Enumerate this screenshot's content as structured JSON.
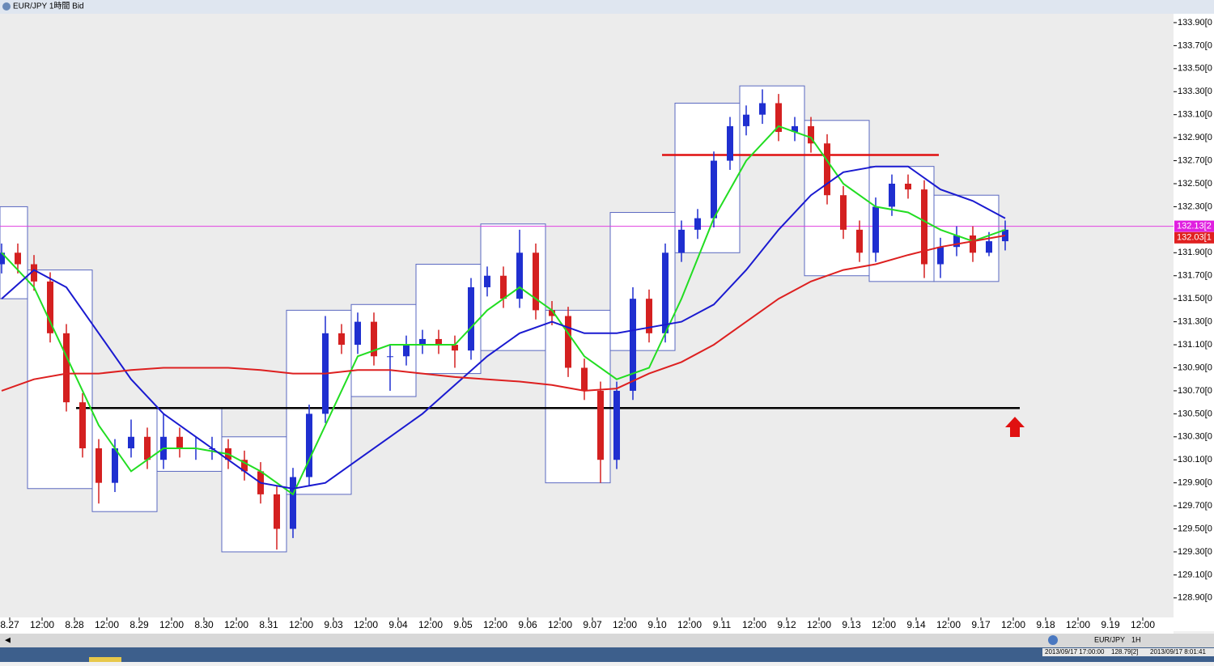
{
  "window": {
    "title": "EUR/JPY 1時間 Bid"
  },
  "chart_data": {
    "type": "candlestick",
    "x": [
      -3,
      3,
      9,
      15,
      21,
      27,
      33,
      39,
      45,
      51,
      57,
      63,
      69,
      75,
      81,
      87,
      93,
      99,
      105,
      111,
      117,
      123,
      129,
      135,
      141,
      147,
      153,
      159,
      165,
      171,
      177,
      183,
      189,
      195,
      201,
      207,
      213,
      219,
      225,
      231,
      237,
      243,
      249,
      255,
      261,
      267,
      273,
      279,
      285,
      291,
      297,
      303,
      309,
      315,
      321,
      327,
      333,
      339,
      345,
      351,
      357,
      363,
      369
    ],
    "open": [
      131.8,
      131.9,
      131.8,
      131.65,
      131.2,
      130.6,
      130.2,
      129.9,
      130.2,
      130.3,
      130.1,
      130.3,
      130.2,
      130.2,
      130.2,
      130.1,
      130.0,
      129.8,
      129.5,
      129.95,
      130.5,
      131.2,
      131.1,
      131.3,
      131.0,
      131.0,
      131.1,
      131.15,
      131.1,
      131.05,
      131.6,
      131.7,
      131.5,
      131.9,
      131.4,
      131.35,
      130.9,
      130.7,
      130.1,
      130.7,
      131.5,
      131.2,
      131.9,
      132.1,
      132.2,
      132.7,
      133.0,
      133.1,
      133.2,
      132.95,
      133.0,
      132.85,
      132.4,
      132.1,
      131.9,
      132.3,
      132.5,
      132.45,
      131.8,
      131.95,
      132.05,
      131.9,
      132.0
    ],
    "high": [
      131.98,
      131.98,
      131.88,
      131.73,
      131.28,
      130.68,
      130.28,
      130.28,
      130.45,
      130.38,
      130.5,
      130.38,
      130.3,
      130.3,
      130.28,
      130.18,
      130.08,
      129.88,
      130.03,
      130.58,
      131.35,
      131.28,
      131.38,
      131.38,
      131.1,
      131.18,
      131.23,
      131.23,
      131.18,
      131.68,
      131.78,
      131.78,
      132.1,
      131.98,
      131.48,
      131.43,
      130.98,
      130.78,
      130.78,
      131.6,
      131.58,
      131.98,
      132.18,
      132.28,
      132.78,
      133.08,
      133.18,
      133.32,
      133.28,
      133.08,
      133.08,
      132.93,
      132.48,
      132.18,
      132.38,
      132.58,
      132.58,
      132.53,
      132.03,
      132.13,
      132.13,
      132.08,
      132.18
    ],
    "low": [
      131.72,
      131.72,
      131.57,
      131.12,
      130.52,
      130.12,
      129.72,
      129.82,
      130.12,
      130.02,
      130.02,
      130.12,
      130.1,
      130.1,
      130.02,
      129.92,
      129.72,
      129.32,
      129.42,
      129.87,
      130.42,
      131.02,
      131.02,
      130.92,
      130.7,
      130.92,
      131.02,
      131.02,
      130.9,
      130.97,
      131.52,
      131.42,
      131.42,
      131.32,
      131.27,
      130.82,
      130.62,
      129.9,
      130.02,
      130.62,
      131.12,
      131.12,
      131.82,
      132.02,
      132.12,
      132.62,
      132.92,
      133.02,
      132.87,
      132.87,
      132.77,
      132.32,
      132.02,
      131.82,
      131.82,
      132.22,
      132.37,
      131.68,
      131.68,
      131.87,
      131.82,
      131.87,
      131.92
    ],
    "close": [
      131.9,
      131.8,
      131.65,
      131.2,
      130.6,
      130.2,
      129.9,
      130.2,
      130.3,
      130.1,
      130.3,
      130.2,
      130.2,
      130.2,
      130.1,
      130.0,
      129.8,
      129.5,
      129.95,
      130.5,
      131.2,
      131.1,
      131.3,
      131.0,
      131.0,
      131.1,
      131.15,
      131.1,
      131.05,
      131.6,
      131.7,
      131.5,
      131.9,
      131.4,
      131.35,
      130.9,
      130.7,
      130.1,
      130.7,
      131.5,
      131.2,
      131.9,
      132.1,
      132.2,
      132.7,
      133.0,
      133.1,
      133.2,
      132.95,
      133.0,
      132.85,
      132.4,
      132.1,
      131.9,
      132.3,
      132.5,
      132.45,
      131.8,
      131.95,
      132.05,
      131.9,
      132.0,
      132.1
    ],
    "up_color": "#1f2fd0",
    "down_color": "#d42020",
    "xlim": [
      -3.6,
      431.4
    ],
    "xticks": [
      {
        "value": 0,
        "label": "8.27"
      },
      {
        "value": 12,
        "label": "12:00"
      },
      {
        "value": 24,
        "label": "8.28"
      },
      {
        "value": 36,
        "label": "12:00"
      },
      {
        "value": 48,
        "label": "8.29"
      },
      {
        "value": 60,
        "label": "12:00"
      },
      {
        "value": 72,
        "label": "8.30"
      },
      {
        "value": 84,
        "label": "12:00"
      },
      {
        "value": 96,
        "label": "8.31"
      },
      {
        "value": 108,
        "label": "12:00"
      },
      {
        "value": 120,
        "label": "9.03"
      },
      {
        "value": 132,
        "label": "12:00"
      },
      {
        "value": 144,
        "label": "9.04"
      },
      {
        "value": 156,
        "label": "12:00"
      },
      {
        "value": 168,
        "label": "9.05"
      },
      {
        "value": 180,
        "label": "12:00"
      },
      {
        "value": 192,
        "label": "9.06"
      },
      {
        "value": 204,
        "label": "12:00"
      },
      {
        "value": 216,
        "label": "9.07"
      },
      {
        "value": 228,
        "label": "12:00"
      },
      {
        "value": 240,
        "label": "9.10"
      },
      {
        "value": 252,
        "label": "12:00"
      },
      {
        "value": 264,
        "label": "9.11"
      },
      {
        "value": 276,
        "label": "12:00"
      },
      {
        "value": 288,
        "label": "9.12"
      },
      {
        "value": 300,
        "label": "12:00"
      },
      {
        "value": 312,
        "label": "9.13"
      },
      {
        "value": 324,
        "label": "12:00"
      },
      {
        "value": 336,
        "label": "9.14"
      },
      {
        "value": 348,
        "label": "12:00"
      },
      {
        "value": 360,
        "label": "9.17"
      },
      {
        "value": 372,
        "label": "12:00"
      },
      {
        "value": 384,
        "label": "9.18"
      },
      {
        "value": 396,
        "label": "12:00"
      },
      {
        "value": 408,
        "label": "9.19"
      },
      {
        "value": 420,
        "label": "12:00"
      }
    ],
    "ylim": [
      128.73,
      133.97
    ],
    "yticks": [
      {
        "value": 133.9,
        "label": "133.90[0"
      },
      {
        "value": 133.7,
        "label": "133.70[0"
      },
      {
        "value": 133.5,
        "label": "133.50[0"
      },
      {
        "value": 133.3,
        "label": "133.30[0"
      },
      {
        "value": 133.1,
        "label": "133.10[0"
      },
      {
        "value": 132.9,
        "label": "132.90[0"
      },
      {
        "value": 132.7,
        "label": "132.70[0"
      },
      {
        "value": 132.5,
        "label": "132.50[0"
      },
      {
        "value": 132.3,
        "label": "132.30[0"
      },
      {
        "value": 131.9,
        "label": "131.90[0"
      },
      {
        "value": 131.7,
        "label": "131.70[0"
      },
      {
        "value": 131.5,
        "label": "131.50[0"
      },
      {
        "value": 131.3,
        "label": "131.30[0"
      },
      {
        "value": 131.1,
        "label": "131.10[0"
      },
      {
        "value": 130.9,
        "label": "130.90[0"
      },
      {
        "value": 130.7,
        "label": "130.70[0"
      },
      {
        "value": 130.5,
        "label": "130.50[0"
      },
      {
        "value": 130.3,
        "label": "130.30[0"
      },
      {
        "value": 130.1,
        "label": "130.10[0"
      },
      {
        "value": 129.9,
        "label": "129.90[0"
      },
      {
        "value": 129.7,
        "label": "129.70[0"
      },
      {
        "value": 129.5,
        "label": "129.50[0"
      },
      {
        "value": 129.3,
        "label": "129.30[0"
      },
      {
        "value": 129.1,
        "label": "129.10[0"
      },
      {
        "value": 128.9,
        "label": "128.90[0"
      }
    ],
    "lines": [
      {
        "color": "#22dd22",
        "x": [
          -3,
          9,
          21,
          33,
          45,
          57,
          69,
          81,
          93,
          105,
          117,
          129,
          141,
          153,
          165,
          177,
          189,
          201,
          213,
          225,
          237,
          249,
          261,
          273,
          285,
          297,
          309,
          321,
          333,
          345,
          357,
          369
        ],
        "values": [
          131.9,
          131.6,
          131.0,
          130.4,
          130.0,
          130.2,
          130.2,
          130.15,
          130.0,
          129.8,
          130.4,
          131.0,
          131.1,
          131.1,
          131.1,
          131.4,
          131.6,
          131.4,
          131.0,
          130.8,
          130.9,
          131.5,
          132.2,
          132.7,
          133.0,
          132.9,
          132.5,
          132.3,
          132.25,
          132.1,
          132.0,
          132.1
        ]
      },
      {
        "color": "#1a1ad0",
        "x": [
          -3,
          9,
          21,
          33,
          45,
          57,
          69,
          81,
          93,
          105,
          117,
          129,
          141,
          153,
          165,
          177,
          189,
          201,
          213,
          225,
          237,
          249,
          261,
          273,
          285,
          297,
          309,
          321,
          333,
          345,
          357,
          369
        ],
        "values": [
          131.5,
          131.75,
          131.6,
          131.2,
          130.8,
          130.5,
          130.3,
          130.1,
          129.9,
          129.85,
          129.9,
          130.1,
          130.3,
          130.5,
          130.75,
          131.0,
          131.2,
          131.3,
          131.2,
          131.2,
          131.25,
          131.3,
          131.45,
          131.75,
          132.1,
          132.4,
          132.6,
          132.65,
          132.65,
          132.45,
          132.35,
          132.2
        ]
      },
      {
        "color": "#dd2020",
        "x": [
          -3,
          9,
          21,
          33,
          45,
          57,
          69,
          81,
          93,
          105,
          117,
          129,
          141,
          153,
          165,
          177,
          189,
          201,
          213,
          225,
          237,
          249,
          261,
          273,
          285,
          297,
          309,
          321,
          333,
          345,
          357,
          369
        ],
        "values": [
          130.7,
          130.8,
          130.85,
          130.85,
          130.88,
          130.9,
          130.9,
          130.9,
          130.88,
          130.85,
          130.85,
          130.88,
          130.88,
          130.85,
          130.82,
          130.8,
          130.78,
          130.75,
          130.7,
          130.72,
          130.85,
          130.95,
          131.1,
          131.3,
          131.5,
          131.65,
          131.75,
          131.8,
          131.88,
          131.95,
          132.0,
          132.05
        ]
      }
    ],
    "ranges": {
      "x0": [
        -3.6,
        6.6,
        30.6,
        54.6,
        78.6,
        102.6,
        126.6,
        150.6,
        174.6,
        198.6,
        222.6,
        246.6,
        270.6,
        294.6,
        318.6,
        342.6
      ],
      "x1": [
        6.6,
        30.6,
        54.6,
        78.6,
        102.6,
        126.6,
        150.6,
        174.6,
        198.6,
        222.6,
        246.6,
        270.6,
        294.6,
        318.6,
        342.6,
        366.6
      ],
      "low": [
        131.5,
        129.85,
        129.65,
        130.0,
        129.3,
        129.8,
        130.65,
        130.85,
        131.05,
        129.9,
        131.05,
        131.9,
        132.75,
        131.7,
        131.65,
        131.65
      ],
      "high": [
        132.3,
        131.75,
        130.55,
        130.55,
        130.3,
        131.4,
        131.45,
        131.8,
        132.15,
        131.4,
        132.25,
        133.2,
        133.35,
        133.05,
        132.65,
        132.4
      ]
    },
    "hlines": [
      {
        "value": 132.75,
        "x0": 241.8,
        "x1": 344.4,
        "color": "#e01010"
      },
      {
        "value": 130.55,
        "x0": 24.6,
        "x1": 374.4,
        "color": "#000000"
      },
      {
        "value": 132.13,
        "color": "#e040e0"
      }
    ],
    "price_labels": [
      {
        "value": 132.13,
        "label": "132.13[2",
        "color": "#e020e0"
      },
      {
        "value": 132.03,
        "label": "132.03[1",
        "color": "#e02020"
      }
    ]
  },
  "toolbar": {
    "symbol": "EUR/JPY",
    "timeframe": "1H"
  },
  "status": {
    "time": "2013/09/17 17:00:00",
    "price": "128.79[2]",
    "clock": "2013/09/17 8:01:41"
  }
}
